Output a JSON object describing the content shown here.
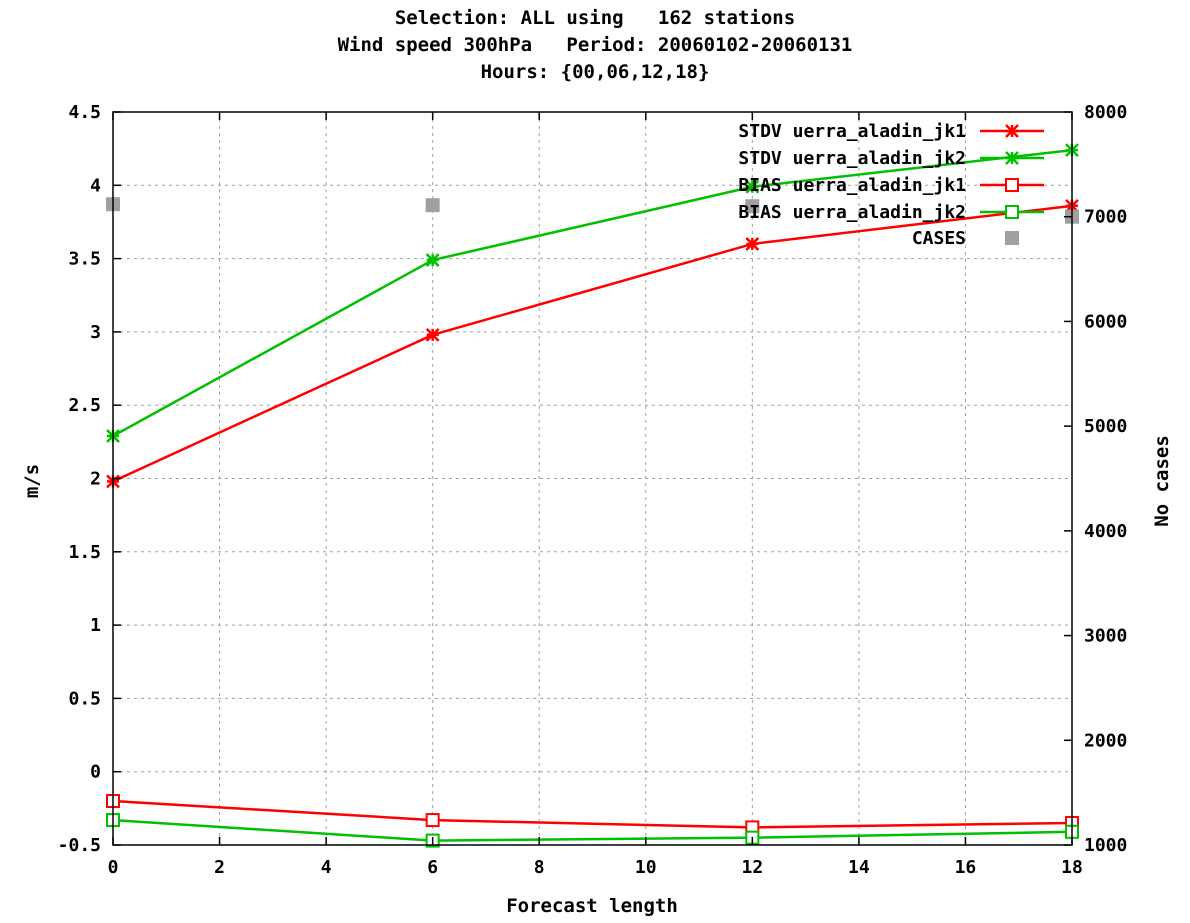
{
  "chart_data": {
    "type": "line",
    "title_lines": [
      "Selection: ALL using   162 stations",
      "Wind speed 300hPa   Period: 20060102-20060131",
      "Hours: {00,06,12,18}"
    ],
    "xlabel": "Forecast length",
    "ylabel": "m/s",
    "y2label": "No cases",
    "x_ticks": [
      0,
      2,
      4,
      6,
      8,
      10,
      12,
      14,
      16,
      18
    ],
    "y_ticks": [
      "-0.5",
      "0",
      "0.5",
      "1",
      "1.5",
      "2",
      "2.5",
      "3",
      "3.5",
      "4",
      "4.5"
    ],
    "y2_ticks": [
      "1000",
      "2000",
      "3000",
      "4000",
      "5000",
      "6000",
      "7000",
      "8000"
    ],
    "xlim": [
      0,
      18
    ],
    "ylim": [
      -0.5,
      4.5
    ],
    "y2lim": [
      1000,
      8000
    ],
    "grid": true,
    "legend_position": "top-right",
    "series": [
      {
        "name": "STDV uerra_aladin_jk1",
        "axis": "y",
        "marker": "star",
        "color": "#ff0000",
        "x": [
          0,
          6,
          12,
          18
        ],
        "values": [
          1.98,
          2.98,
          3.6,
          3.86
        ]
      },
      {
        "name": "STDV uerra_aladin_jk2",
        "axis": "y",
        "marker": "star",
        "color": "#00c000",
        "x": [
          0,
          6,
          12,
          18
        ],
        "values": [
          2.29,
          3.49,
          3.99,
          4.24
        ]
      },
      {
        "name": "BIAS uerra_aladin_jk1",
        "axis": "y",
        "marker": "square",
        "color": "#ff0000",
        "x": [
          0,
          6,
          12,
          18
        ],
        "values": [
          -0.2,
          -0.33,
          -0.38,
          -0.35
        ]
      },
      {
        "name": "BIAS uerra_aladin_jk2",
        "axis": "y",
        "marker": "square",
        "color": "#00c000",
        "x": [
          0,
          6,
          12,
          18
        ],
        "values": [
          -0.33,
          -0.47,
          -0.45,
          -0.41
        ]
      },
      {
        "name": "CASES",
        "axis": "y2",
        "marker": "filled-square",
        "color": "#a0a0a0",
        "x": [
          0,
          6,
          12,
          18
        ],
        "values": [
          7120,
          7110,
          7100,
          7000
        ]
      }
    ]
  }
}
